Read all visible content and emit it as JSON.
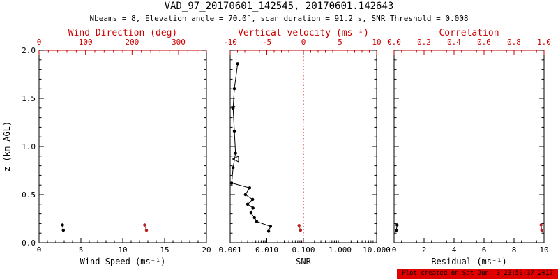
{
  "title": "VAD_97_20170601_142545, 20170601.142643",
  "subtitle": "Nbeams = 8, Elevation angle = 70.0°, scan duration = 91.2 s, SNR Threshold = 0.008",
  "footer": "Plot created on Sat Jun  3 23:50:37 2017",
  "colors": {
    "axis": "#000000",
    "accent": "#cc0000",
    "marker_red": "#b22222",
    "footer_bg": "#e00000",
    "footer_text": "#000000"
  },
  "y_axis": {
    "label": "z (km AGL)",
    "min": 0,
    "max": 2,
    "minor_step": 0.1,
    "ticks": [
      {
        "v": 0,
        "t": "0.0"
      },
      {
        "v": 0.5,
        "t": "0.5"
      },
      {
        "v": 1,
        "t": "1.0"
      },
      {
        "v": 1.5,
        "t": "1.5"
      },
      {
        "v": 2,
        "t": "2.0"
      }
    ]
  },
  "chart_data": [
    {
      "type": "scatter",
      "name": "wind",
      "bottom_axis": {
        "label": "Wind Speed (ms⁻¹)",
        "scale": "linear",
        "min": 0,
        "max": 20,
        "minor_step": 1,
        "ticks": [
          {
            "v": 0,
            "t": "0"
          },
          {
            "v": 5,
            "t": "5"
          },
          {
            "v": 10,
            "t": "10"
          },
          {
            "v": 15,
            "t": "15"
          },
          {
            "v": 20,
            "t": "20"
          }
        ]
      },
      "top_axis": {
        "label": "Wind Direction (deg)",
        "scale": "linear",
        "min": 0,
        "max": 360,
        "minor_step": 20,
        "color": "#cc0000",
        "ticks": [
          {
            "v": 0,
            "t": "0"
          },
          {
            "v": 100,
            "t": "100"
          },
          {
            "v": 200,
            "t": "200"
          },
          {
            "v": 300,
            "t": "300"
          }
        ]
      },
      "series": [
        {
          "name": "wind-speed",
          "axis": "bottom",
          "color": "#000000",
          "marker": "circle",
          "line": true,
          "points": [
            [
              2.8,
              0.185
            ],
            [
              2.9,
              0.13
            ]
          ]
        },
        {
          "name": "wind-direction",
          "axis": "top",
          "color": "#b22222",
          "marker": "circle",
          "line": true,
          "points": [
            [
              227,
              0.185
            ],
            [
              231,
              0.13
            ]
          ]
        }
      ]
    },
    {
      "type": "scatter",
      "name": "snr",
      "bottom_axis": {
        "label": "SNR",
        "scale": "log",
        "min": 0.001,
        "max": 10,
        "ticks": [
          {
            "v": 0.001,
            "t": "0.001"
          },
          {
            "v": 0.01,
            "t": "0.010"
          },
          {
            "v": 0.1,
            "t": "0.100"
          },
          {
            "v": 1,
            "t": "1.000"
          },
          {
            "v": 10,
            "t": "10.000"
          }
        ]
      },
      "top_axis": {
        "label": "Vertical velocity (ms⁻¹)",
        "scale": "linear",
        "min": -10,
        "max": 10,
        "minor_step": 1,
        "color": "#cc0000",
        "ticks": [
          {
            "v": -10,
            "t": "-10"
          },
          {
            "v": -5,
            "t": "-5"
          },
          {
            "v": 0,
            "t": "0"
          },
          {
            "v": 5,
            "t": "5"
          },
          {
            "v": 10,
            "t": "10"
          }
        ]
      },
      "refline": {
        "axis": "top",
        "value": 0,
        "color": "#cc0000",
        "style": "dotted"
      },
      "series": [
        {
          "name": "snr-profile",
          "axis": "bottom",
          "color": "#000000",
          "marker": "circle",
          "line": true,
          "points": [
            [
              0.0016,
              1.86
            ],
            [
              0.0013,
              1.6
            ],
            [
              0.0012,
              1.4
            ],
            [
              0.0013,
              1.16
            ],
            [
              0.0014,
              0.93
            ],
            [
              0.0012,
              0.78
            ],
            [
              0.0011,
              0.62
            ],
            [
              0.0034,
              0.57
            ],
            [
              0.0026,
              0.5
            ],
            [
              0.0041,
              0.45
            ],
            [
              0.003,
              0.4
            ],
            [
              0.0042,
              0.36
            ],
            [
              0.0037,
              0.31
            ],
            [
              0.0046,
              0.26
            ],
            [
              0.0053,
              0.22
            ],
            [
              0.0127,
              0.17
            ],
            [
              0.0112,
              0.12
            ]
          ]
        },
        {
          "name": "snr-triangle-marker",
          "axis": "bottom",
          "color": "#000000",
          "marker": "triangle-down",
          "line": false,
          "points": [
            [
              0.0012,
              1.4
            ]
          ]
        },
        {
          "name": "snr-open-marker",
          "axis": "bottom",
          "color": "#000000",
          "marker": "open-left",
          "line": false,
          "points": [
            [
              0.0013,
              0.87
            ]
          ]
        },
        {
          "name": "vertical-velocity",
          "axis": "top",
          "color": "#b22222",
          "marker": "circle",
          "line": true,
          "points": [
            [
              -0.6,
              0.18
            ],
            [
              -0.4,
              0.13
            ]
          ]
        }
      ]
    },
    {
      "type": "scatter",
      "name": "residual",
      "bottom_axis": {
        "label": "Residual (ms⁻¹)",
        "scale": "linear",
        "min": 0,
        "max": 10,
        "minor_step": 0.5,
        "ticks": [
          {
            "v": 0,
            "t": "0"
          },
          {
            "v": 2,
            "t": "2"
          },
          {
            "v": 4,
            "t": "4"
          },
          {
            "v": 6,
            "t": "6"
          },
          {
            "v": 8,
            "t": "8"
          },
          {
            "v": 10,
            "t": "10"
          }
        ]
      },
      "top_axis": {
        "label": "Correlation",
        "scale": "linear",
        "min": 0,
        "max": 1,
        "minor_step": 0.05,
        "color": "#cc0000",
        "ticks": [
          {
            "v": 0,
            "t": "0.0"
          },
          {
            "v": 0.2,
            "t": "0.2"
          },
          {
            "v": 0.4,
            "t": "0.4"
          },
          {
            "v": 0.6,
            "t": "0.6"
          },
          {
            "v": 0.8,
            "t": "0.8"
          },
          {
            "v": 1,
            "t": "1.0"
          }
        ]
      },
      "series": [
        {
          "name": "residual",
          "axis": "bottom",
          "color": "#000000",
          "marker": "circle",
          "line": true,
          "points": [
            [
              0.2,
              0.185
            ],
            [
              0.15,
              0.13
            ]
          ]
        },
        {
          "name": "correlation",
          "axis": "top",
          "color": "#b22222",
          "marker": "circle",
          "line": true,
          "points": [
            [
              0.98,
              0.185
            ],
            [
              0.985,
              0.13
            ]
          ]
        }
      ]
    }
  ]
}
